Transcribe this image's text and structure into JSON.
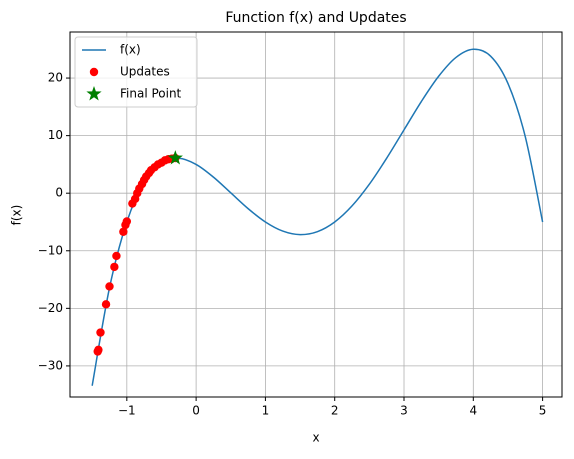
{
  "chart_data": {
    "type": "line",
    "title": "Function f(x) and Updates",
    "xlabel": "x",
    "ylabel": "f(x)",
    "xlim": [
      -1.82,
      5.28
    ],
    "ylim": [
      -35.4,
      28
    ],
    "xticks": [
      {
        "value": -1,
        "label": "−1"
      },
      0,
      1,
      2,
      3,
      4,
      5
    ],
    "yticks": [
      {
        "value": -30,
        "label": "−30"
      },
      {
        "value": -20,
        "label": "−20"
      },
      {
        "value": -10,
        "label": "−10"
      },
      0,
      10,
      20
    ],
    "grid": true,
    "legend": "upper left",
    "series": [
      {
        "name": "f(x)",
        "type": "line",
        "color": "#1f77b4",
        "x": [
          -1.5,
          -1.25,
          -1,
          -0.75,
          -0.5,
          -0.25,
          0,
          0.25,
          0.5,
          0.75,
          1,
          1.25,
          1.5,
          1.75,
          2,
          2.25,
          2.5,
          2.75,
          3,
          3.25,
          3.5,
          3.75,
          4,
          4.25,
          4.5,
          4.75,
          5
        ],
        "values": [
          -33.44,
          -16.43,
          -5,
          1.92,
          5.31,
          6.07,
          5,
          2.79,
          0.06,
          -2.68,
          -5,
          -6.58,
          -7.19,
          -6.68,
          -5,
          -2.21,
          1.56,
          6.08,
          11,
          15.92,
          20.31,
          23.58,
          25,
          23.8,
          19.06,
          9.82,
          -5
        ]
      },
      {
        "name": "Updates",
        "type": "scatter",
        "color": "#ff0000",
        "x": [
          -1.42,
          -1.41,
          -1.38,
          -1.3,
          -1.25,
          -1.18,
          -1.15,
          -1.05,
          -1.02,
          -1.0,
          -0.92,
          -0.88,
          -0.85,
          -0.82,
          -0.78,
          -0.75,
          -0.72,
          -0.68,
          -0.65,
          -0.6,
          -0.55,
          -0.5,
          -0.45,
          -0.4,
          -0.35,
          -0.3
        ],
        "values": [
          -27.5,
          -27.2,
          -24.2,
          -19.3,
          -16.2,
          -12.8,
          -10.9,
          -6.7,
          -5.5,
          -4.9,
          -1.8,
          -1.0,
          0.0,
          0.8,
          1.6,
          2.3,
          2.9,
          3.5,
          4.0,
          4.5,
          5.0,
          5.3,
          5.7,
          5.9,
          6.0,
          6.1
        ]
      },
      {
        "name": "Final Point",
        "type": "star",
        "color": "#008000",
        "x": [
          -0.3
        ],
        "values": [
          6.1
        ]
      }
    ]
  }
}
